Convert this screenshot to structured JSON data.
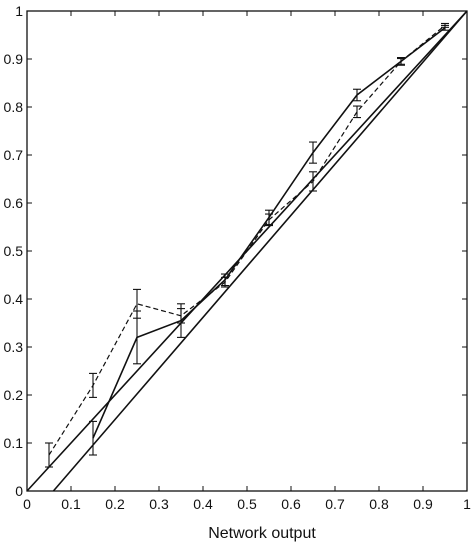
{
  "chart_data": {
    "type": "line",
    "title": "",
    "xlabel": "Network output",
    "ylabel": "",
    "xlim": [
      0,
      1
    ],
    "ylim": [
      0,
      1
    ],
    "grid": false,
    "x_ticks": [
      0,
      0.1,
      0.2,
      0.3,
      0.4,
      0.5,
      0.6,
      0.7,
      0.8,
      0.9,
      1
    ],
    "y_ticks": [
      0,
      0.1,
      0.2,
      0.3,
      0.4,
      0.5,
      0.6,
      0.7,
      0.8,
      0.9,
      1
    ],
    "x_tick_labels": [
      "0",
      "0.1",
      "0.2",
      "0.3",
      "0.4",
      "0.5",
      "0.6",
      "0.7",
      "0.8",
      "0.9",
      "1"
    ],
    "y_tick_labels": [
      "0",
      "0.1",
      "0.2",
      "0.3",
      "0.4",
      "0.5",
      "0.6",
      "0.7",
      "0.8",
      "0.9",
      "1"
    ],
    "series": [
      {
        "style": "solid",
        "x": [
          0.15,
          0.25,
          0.35,
          0.45,
          0.55,
          0.65,
          0.75,
          0.85,
          0.95
        ],
        "y": [
          0.11,
          0.32,
          0.355,
          0.44,
          0.57,
          0.705,
          0.825,
          0.895,
          0.965
        ],
        "err": [
          0.035,
          0.055,
          0.035,
          0.012,
          0.015,
          0.022,
          0.012,
          0.008,
          0.005
        ]
      },
      {
        "style": "dashed",
        "x": [
          0.05,
          0.15,
          0.25,
          0.35,
          0.45,
          0.55,
          0.65,
          0.75,
          0.85,
          0.95
        ],
        "y": [
          0.075,
          0.22,
          0.39,
          0.365,
          0.435,
          0.565,
          0.645,
          0.79,
          0.895,
          0.97
        ],
        "err": [
          0.025,
          0.025,
          0.03,
          0.015,
          0.01,
          0.012,
          0.02,
          0.012,
          0.006,
          0.004
        ]
      },
      {
        "style": "solid",
        "x": [
          0,
          1
        ],
        "y": [
          0,
          1
        ]
      },
      {
        "style": "solid",
        "x": [
          0.06,
          1
        ],
        "y": [
          0,
          1
        ]
      }
    ]
  }
}
